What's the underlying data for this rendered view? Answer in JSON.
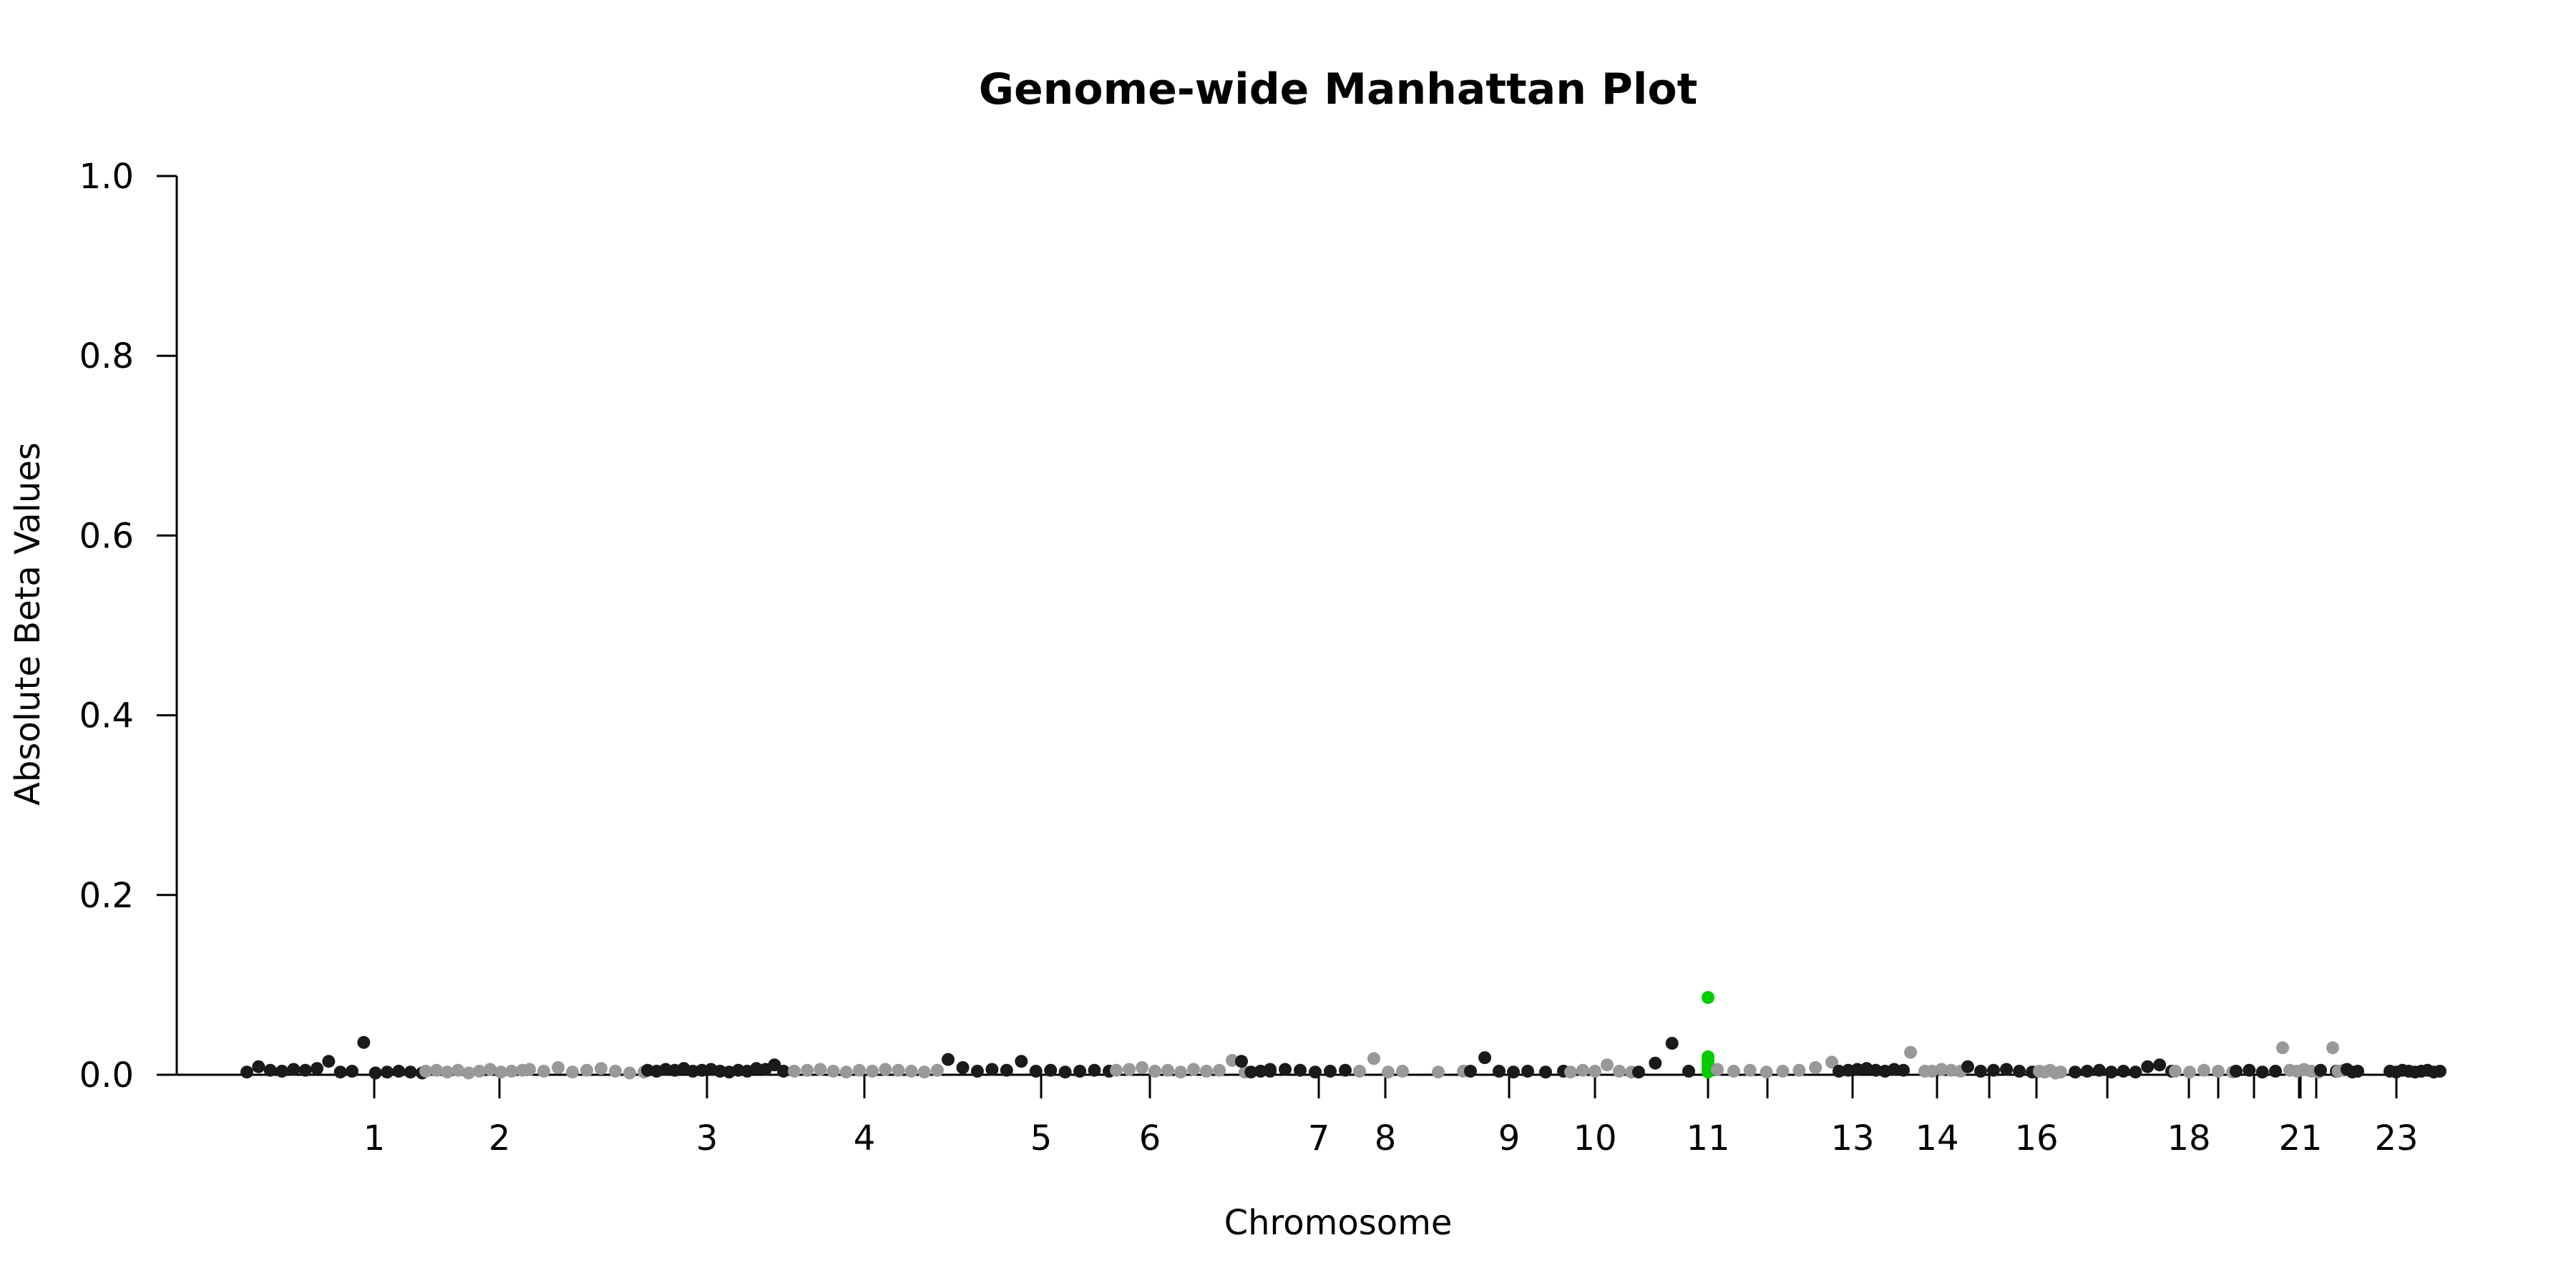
{
  "chart_data": {
    "type": "scatter",
    "title": "Genome-wide Manhattan Plot",
    "xlabel": "Chromosome",
    "ylabel": "Absolute Beta Values",
    "ylim": [
      0,
      1.0
    ],
    "yticks": [
      "0.0",
      "0.2",
      "0.4",
      "0.6",
      "0.8",
      "1.0"
    ],
    "xticks": [
      "1",
      "2",
      "3",
      "4",
      "5",
      "6",
      "7",
      "8",
      "9",
      "10",
      "11",
      "13",
      "14",
      "16",
      "18",
      "21",
      "23"
    ],
    "grid": false,
    "legend": "none",
    "colors": {
      "odd": "#1a1a1a",
      "even": "#999999",
      "highlight": "#00cc00"
    },
    "series": [
      {
        "color_key": "odd",
        "chrom": "1",
        "y": [
          0.003,
          0.009,
          0.005,
          0.004,
          0.006,
          0.005,
          0.007,
          0.015,
          0.003,
          0.004,
          0.036,
          0.002,
          0.003,
          0.004,
          0.003,
          0.002
        ]
      },
      {
        "color_key": "even",
        "chrom": "2",
        "y": [
          0.004,
          0.005,
          0.003,
          0.005,
          0.002,
          0.004,
          0.006,
          0.003,
          0.004,
          0.005
        ]
      },
      {
        "color_key": "even",
        "chrom": "2-3",
        "y": [
          0.006,
          0.004,
          0.008,
          0.003,
          0.005,
          0.007,
          0.004,
          0.002,
          0.003
        ]
      },
      {
        "color_key": "odd",
        "chrom": "3",
        "y": [
          0.005,
          0.004,
          0.006,
          0.005,
          0.007,
          0.004,
          0.005,
          0.006,
          0.004,
          0.003,
          0.005,
          0.004,
          0.007,
          0.006,
          0.011,
          0.004
        ]
      },
      {
        "color_key": "even",
        "chrom": "4",
        "y": [
          0.004,
          0.005,
          0.006,
          0.004,
          0.003,
          0.005,
          0.004,
          0.006,
          0.005,
          0.004,
          0.003,
          0.005
        ]
      },
      {
        "color_key": "odd",
        "chrom": "5",
        "y": [
          0.017,
          0.008,
          0.004,
          0.006,
          0.005,
          0.015,
          0.004,
          0.005,
          0.003,
          0.004,
          0.005,
          0.004
        ]
      },
      {
        "color_key": "even",
        "chrom": "6",
        "y": [
          0.005,
          0.006,
          0.008,
          0.004,
          0.005,
          0.003,
          0.006,
          0.004,
          0.005,
          0.016,
          0.003
        ]
      },
      {
        "color_key": "odd",
        "chrom": "6-7",
        "y": [
          0.015,
          0.003,
          0.004,
          0.006
        ]
      },
      {
        "color_key": "odd",
        "chrom": "7",
        "y": [
          0.004,
          0.006,
          0.005,
          0.003,
          0.004,
          0.005
        ]
      },
      {
        "color_key": "even",
        "chrom": "8",
        "y": [
          0.004,
          0.018,
          0.003,
          0.004
        ]
      },
      {
        "color_key": "even",
        "chrom": "8-9",
        "y": [
          0.003,
          0.004
        ]
      },
      {
        "color_key": "odd",
        "chrom": "9",
        "y": [
          0.004,
          0.019,
          0.004,
          0.003
        ]
      },
      {
        "color_key": "odd",
        "chrom": "9-10",
        "y": [
          0.004,
          0.003,
          0.004
        ]
      },
      {
        "color_key": "even",
        "chrom": "10",
        "y": [
          0.003,
          0.005,
          0.004,
          0.011,
          0.004,
          0.003
        ]
      },
      {
        "color_key": "odd",
        "chrom": "10-11",
        "y": [
          0.003,
          0.013,
          0.035,
          0.004
        ]
      },
      {
        "color_key": "highlight",
        "chrom": "11",
        "y": [
          0.086,
          0.02,
          0.016,
          0.012,
          0.008,
          0.005,
          0.003
        ]
      },
      {
        "color_key": "even",
        "chrom": "11-12",
        "y": [
          0.006,
          0.004,
          0.005,
          0.003,
          0.004,
          0.005,
          0.008,
          0.014
        ]
      },
      {
        "color_key": "odd",
        "chrom": "13",
        "y": [
          0.004,
          0.005,
          0.006,
          0.007,
          0.005,
          0.004,
          0.006,
          0.005
        ]
      },
      {
        "color_key": "even",
        "chrom": "13-14",
        "y": [
          0.025,
          0.004
        ]
      },
      {
        "color_key": "even",
        "chrom": "14",
        "y": [
          0.004,
          0.006,
          0.005,
          0.004
        ]
      },
      {
        "color_key": "odd",
        "chrom": "14-15",
        "y": [
          0.009,
          0.004,
          0.005,
          0.006,
          0.004,
          0.003
        ]
      },
      {
        "color_key": "even",
        "chrom": "16",
        "y": [
          0.004,
          0.003,
          0.005,
          0.002,
          0.003
        ]
      },
      {
        "color_key": "odd",
        "chrom": "17",
        "y": [
          0.003,
          0.004,
          0.005,
          0.003,
          0.004,
          0.003,
          0.009,
          0.011,
          0.004
        ]
      },
      {
        "color_key": "even",
        "chrom": "18",
        "y": [
          0.004,
          0.003,
          0.005,
          0.004,
          0.003
        ]
      },
      {
        "color_key": "odd",
        "chrom": "19",
        "y": [
          0.004,
          0.005,
          0.003,
          0.004
        ]
      },
      {
        "color_key": "even",
        "chrom": "20",
        "y": [
          0.03,
          0.005,
          0.004,
          0.006,
          0.004,
          0.003
        ]
      },
      {
        "color_key": "odd",
        "chrom": "21",
        "y": [
          0.005,
          0.004
        ]
      },
      {
        "color_key": "even",
        "chrom": "22",
        "y": [
          0.03,
          0.004,
          0.005
        ]
      },
      {
        "color_key": "odd",
        "chrom": "22b",
        "y": [
          0.006,
          0.003,
          0.004
        ]
      },
      {
        "color_key": "odd",
        "chrom": "23",
        "y": [
          0.004,
          0.003,
          0.005,
          0.004,
          0.003,
          0.004,
          0.005,
          0.003,
          0.004
        ]
      }
    ]
  }
}
